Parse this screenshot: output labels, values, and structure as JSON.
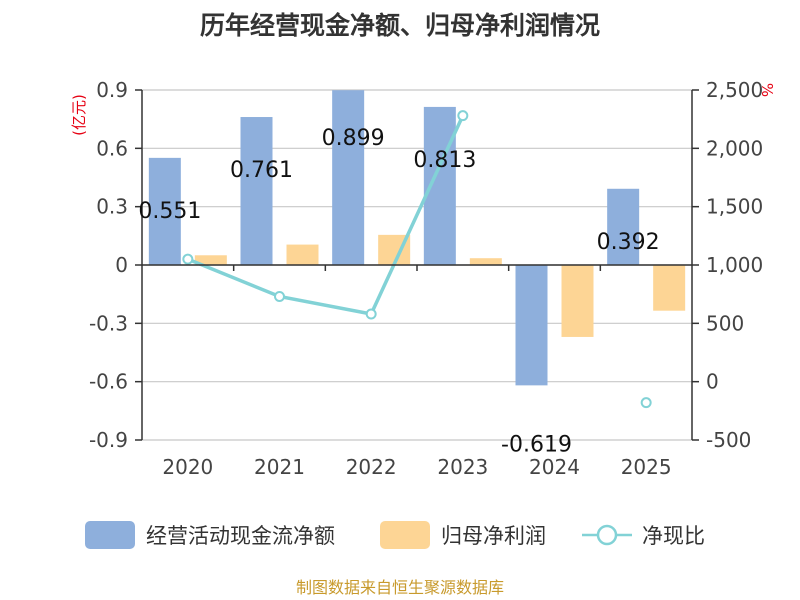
{
  "chart_data": {
    "type": "bar",
    "title": "历年经营现金净额、归母净利润情况",
    "categories": [
      "2020",
      "2021",
      "2022",
      "2023",
      "2024",
      "2025"
    ],
    "y_left": {
      "unit": "(亿元)",
      "ylim": [
        -0.9,
        0.9
      ],
      "ticks": [
        0.9,
        0.6,
        0.3,
        0,
        -0.3,
        -0.6,
        -0.9
      ],
      "tick_labels": [
        "0.9",
        "0.6",
        "0.3",
        "0",
        "-0.3",
        "-0.6",
        "-0.9"
      ]
    },
    "y_right": {
      "unit": "%",
      "ylim": [
        -500,
        2500
      ],
      "ticks": [
        2500,
        2000,
        1500,
        1000,
        500,
        0,
        -500
      ],
      "tick_labels": [
        "2,500",
        "2,000",
        "1,500",
        "1,000",
        "500",
        "0",
        "-500"
      ]
    },
    "series": [
      {
        "name": "经营活动现金流净额",
        "type": "bar",
        "axis": "left",
        "color": "#8eafdc",
        "values": [
          0.551,
          0.761,
          0.899,
          0.813,
          -0.619,
          0.392
        ],
        "labels": [
          "0.551",
          "0.761",
          "0.899",
          "0.813",
          "-0.619",
          "0.392"
        ]
      },
      {
        "name": "归母净利润",
        "type": "bar",
        "axis": "left",
        "color": "#fdd595",
        "values": [
          0.05,
          0.105,
          0.155,
          0.035,
          -0.37,
          -0.235
        ]
      },
      {
        "name": "净现比",
        "type": "line",
        "axis": "right",
        "color": "#82d2d6",
        "values": [
          1050,
          730,
          580,
          2280,
          null,
          -180
        ]
      }
    ],
    "legend_position": "bottom",
    "grid": true
  },
  "source": "制图数据来自恒生聚源数据库"
}
